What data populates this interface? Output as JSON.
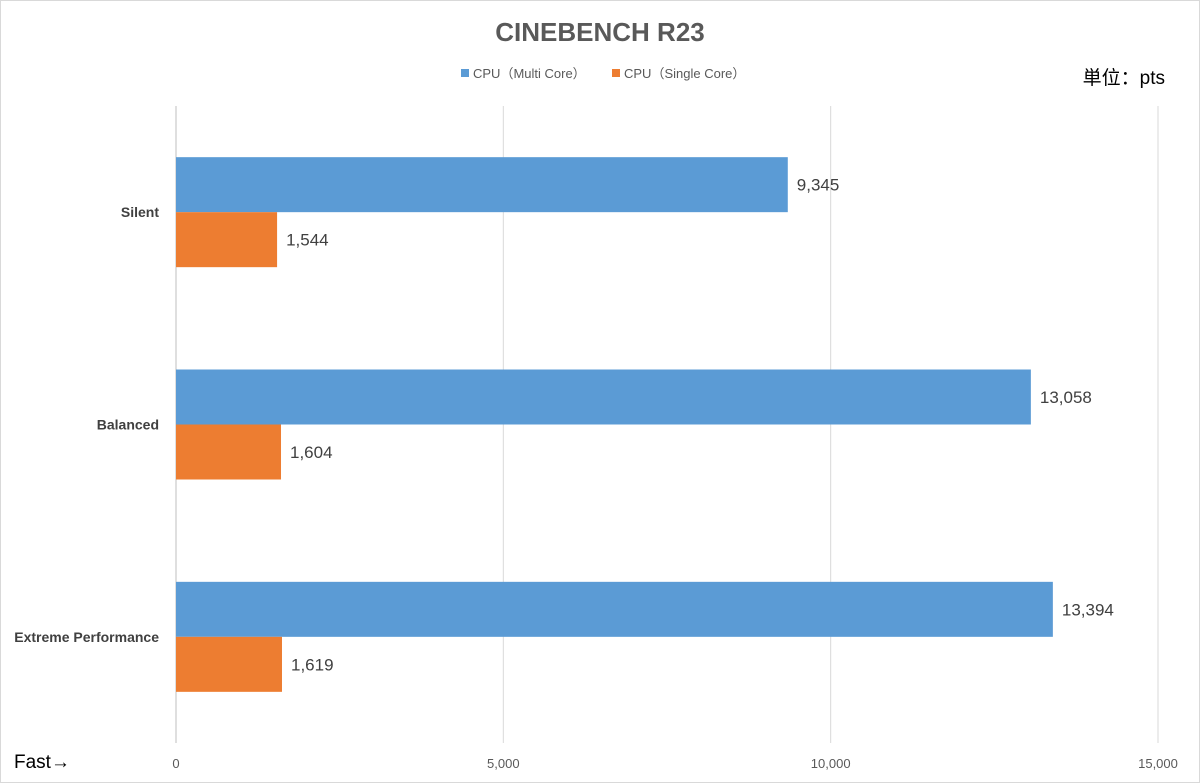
{
  "chart_data": {
    "type": "bar",
    "orientation": "horizontal",
    "title": "CINEBENCH R23",
    "unit_label": "単位：pts",
    "corner_note": "Fast→",
    "categories": [
      "Silent",
      "Balanced",
      "Extreme Performance"
    ],
    "series": [
      {
        "name": "CPU（Multi Core）",
        "color": "#5b9bd5",
        "values": [
          9345,
          13058,
          13394
        ],
        "labels": [
          "9,345",
          "13,058",
          "13,394"
        ]
      },
      {
        "name": "CPU（Single Core）",
        "color": "#ed7d31",
        "values": [
          1544,
          1604,
          1619
        ],
        "labels": [
          "1,544",
          "1,604",
          "1,619"
        ]
      }
    ],
    "xlim": [
      0,
      15000
    ],
    "xticks": [
      0,
      5000,
      10000,
      15000
    ],
    "xtick_labels": [
      "0",
      "5,000",
      "10,000",
      "15,000"
    ],
    "grid": true,
    "legend_position": "top"
  }
}
